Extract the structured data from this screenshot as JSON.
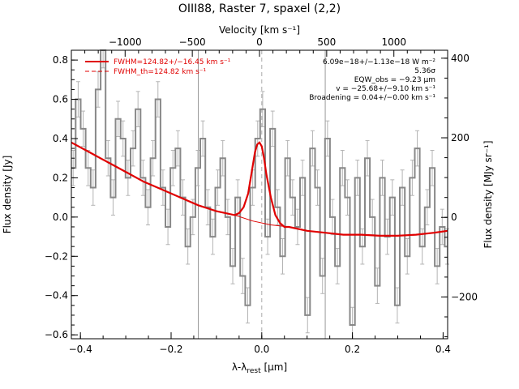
{
  "chart_data": {
    "type": "line",
    "title": "OIII88, Raster 7, spaxel (2,2)",
    "xlabel": "λ-λ",
    "xlabel_sub": "rest",
    "xlabel_unit": " [μm]",
    "ylabel": "Flux density [Jy]",
    "ylabel_right": "Flux density [MJy sr⁻¹]",
    "top_axis_label": "Velocity [km s⁻¹]",
    "xlim": [
      -0.42,
      0.41
    ],
    "ylim": [
      -0.62,
      0.85
    ],
    "ylim_right": [
      -305,
      420
    ],
    "vlim_top": [
      -1400,
      1400
    ],
    "x_ticks": [
      -0.4,
      -0.2,
      0.0,
      0.2,
      0.4
    ],
    "x_tick_labels": [
      "−0.4",
      "−0.2",
      "0.0",
      "0.2",
      "0.4"
    ],
    "y_ticks": [
      -0.6,
      -0.4,
      -0.2,
      0.0,
      0.2,
      0.4,
      0.6,
      0.8
    ],
    "y_tick_labels": [
      "−0.6",
      "−0.4",
      "−0.2",
      "0.0",
      "0.2",
      "0.4",
      "0.6",
      "0.8"
    ],
    "yr_ticks": [
      -200,
      0,
      200,
      400
    ],
    "yr_tick_labels": [
      "−200",
      "0",
      "200",
      "400"
    ],
    "v_ticks": [
      -1000,
      -500,
      0,
      500,
      1000
    ],
    "v_tick_labels": [
      "−1000",
      "−500",
      "0",
      "500",
      "1000"
    ],
    "vlines_solid": [
      -0.14,
      0.14
    ],
    "vline_dashed": 0.0,
    "legend": [
      {
        "label": "FWHM=124.82+/−16.45 km s⁻¹",
        "style": "solid",
        "color": "#e00000"
      },
      {
        "label": "FWHM_th=124.82 km s⁻¹",
        "style": "dashed",
        "color": "#e00000"
      }
    ],
    "annotations": [
      "6.09e−18+/−1.13e−18 W m⁻²",
      "5.36σ",
      "EQW_obs = −9.23 μm",
      "v = −25.68+/−9.10 km s⁻¹",
      "Broadening = 0.04+/−0.00 km s⁻¹"
    ],
    "colors": {
      "spectrum": "#888888",
      "errorbar": "#b4b4b4",
      "fit": "#e00000",
      "vline": "#999999"
    },
    "series": [
      {
        "name": "spectrum",
        "type": "step",
        "x": [
          -0.416,
          -0.405,
          -0.394,
          -0.383,
          -0.372,
          -0.361,
          -0.35,
          -0.339,
          -0.328,
          -0.317,
          -0.306,
          -0.295,
          -0.284,
          -0.273,
          -0.262,
          -0.251,
          -0.24,
          -0.229,
          -0.218,
          -0.207,
          -0.196,
          -0.185,
          -0.174,
          -0.163,
          -0.152,
          -0.141,
          -0.13,
          -0.119,
          -0.108,
          -0.097,
          -0.086,
          -0.075,
          -0.064,
          -0.053,
          -0.042,
          -0.031,
          -0.02,
          -0.009,
          0.002,
          0.013,
          0.024,
          0.035,
          0.046,
          0.057,
          0.068,
          0.079,
          0.09,
          0.101,
          0.112,
          0.123,
          0.134,
          0.145,
          0.156,
          0.167,
          0.178,
          0.189,
          0.2,
          0.211,
          0.222,
          0.233,
          0.244,
          0.255,
          0.266,
          0.277,
          0.288,
          0.299,
          0.31,
          0.321,
          0.332,
          0.343,
          0.354,
          0.365,
          0.376,
          0.387,
          0.398,
          0.409
        ],
        "y": [
          0.25,
          0.6,
          0.45,
          0.25,
          0.15,
          0.65,
          0.85,
          0.3,
          0.1,
          0.5,
          0.4,
          0.2,
          0.35,
          0.55,
          0.2,
          0.05,
          0.3,
          0.6,
          0.15,
          -0.05,
          0.25,
          0.35,
          0.1,
          -0.15,
          0.0,
          0.25,
          0.4,
          0.05,
          -0.1,
          0.15,
          0.3,
          0.0,
          -0.25,
          0.1,
          -0.3,
          -0.45,
          0.15,
          0.4,
          0.55,
          -0.1,
          0.45,
          0.05,
          -0.2,
          0.3,
          0.1,
          -0.05,
          0.2,
          -0.5,
          0.35,
          0.15,
          -0.3,
          0.4,
          0.0,
          -0.25,
          0.25,
          0.1,
          -0.55,
          0.2,
          -0.15,
          0.3,
          0.0,
          -0.35,
          0.2,
          -0.1,
          0.1,
          -0.45,
          0.15,
          -0.2,
          0.2,
          0.35,
          -0.15,
          0.05,
          0.25,
          -0.25,
          -0.05,
          -0.15
        ],
        "yerr": 0.09
      },
      {
        "name": "continuum",
        "type": "line",
        "x": [
          -0.42,
          -0.38,
          -0.34,
          -0.3,
          -0.26,
          -0.22,
          -0.18,
          -0.14,
          -0.1,
          -0.06,
          -0.02,
          0.02,
          0.06,
          0.1,
          0.14,
          0.18,
          0.22,
          0.26,
          0.3,
          0.34,
          0.38,
          0.41
        ],
        "y": [
          0.38,
          0.33,
          0.28,
          0.23,
          0.18,
          0.14,
          0.1,
          0.06,
          0.03,
          0.01,
          -0.02,
          -0.04,
          -0.05,
          -0.07,
          -0.08,
          -0.09,
          -0.09,
          -0.095,
          -0.095,
          -0.09,
          -0.08,
          -0.07
        ]
      },
      {
        "name": "line_fit",
        "type": "line",
        "x": [
          -0.06,
          -0.05,
          -0.04,
          -0.03,
          -0.02,
          -0.015,
          -0.01,
          -0.005,
          0.0,
          0.005,
          0.01,
          0.02,
          0.03,
          0.04,
          0.05
        ],
        "y": [
          0.01,
          0.02,
          0.05,
          0.12,
          0.26,
          0.33,
          0.37,
          0.38,
          0.36,
          0.3,
          0.22,
          0.1,
          0.01,
          -0.03,
          -0.05
        ]
      }
    ]
  }
}
